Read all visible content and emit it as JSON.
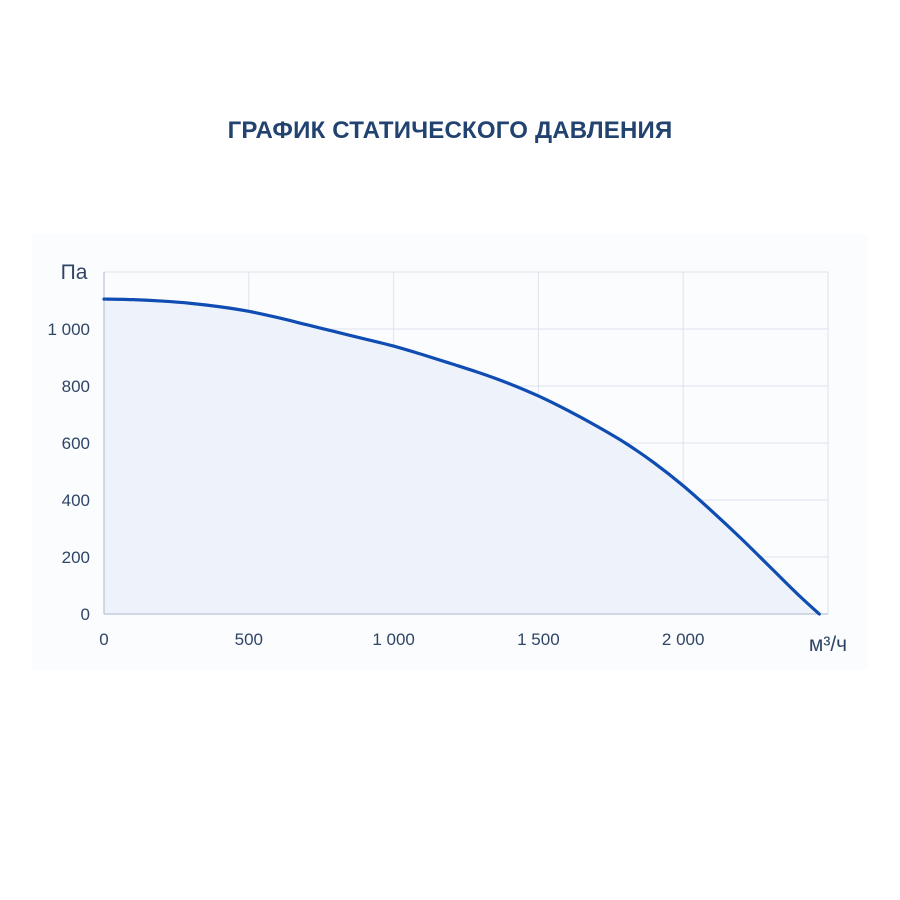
{
  "chart_data": {
    "type": "area",
    "title": "ГРАФИК СТАТИЧЕСКОГО ДАВЛЕНИЯ",
    "ylabel": "Па",
    "xlabel": "м³/ч",
    "xlim": [
      0,
      2500
    ],
    "ylim": [
      0,
      1200
    ],
    "x_ticks": [
      0,
      500,
      1000,
      1500,
      2000
    ],
    "x_tick_labels": [
      "0",
      "500",
      "1 000",
      "1 500",
      "2 000"
    ],
    "y_ticks": [
      0,
      200,
      400,
      600,
      800,
      1000
    ],
    "y_tick_labels": [
      "0",
      "200",
      "400",
      "600",
      "800",
      "1 000"
    ],
    "grid": true,
    "colors": {
      "line": "#0f4db3",
      "fill": "#eef3fb",
      "grid": "#dde3ed",
      "axis": "#b8c4d6"
    },
    "series": [
      {
        "x": [
          0,
          100,
          200,
          300,
          400,
          500,
          600,
          700,
          800,
          900,
          1000,
          1100,
          1200,
          1300,
          1400,
          1500,
          1600,
          1700,
          1800,
          1900,
          2000,
          2100,
          2200,
          2300,
          2400,
          2470
        ],
        "y": [
          1105,
          1103,
          1098,
          1090,
          1078,
          1062,
          1040,
          1015,
          990,
          965,
          940,
          910,
          878,
          845,
          808,
          765,
          715,
          660,
          600,
          530,
          450,
          360,
          265,
          165,
          65,
          0
        ]
      }
    ]
  }
}
